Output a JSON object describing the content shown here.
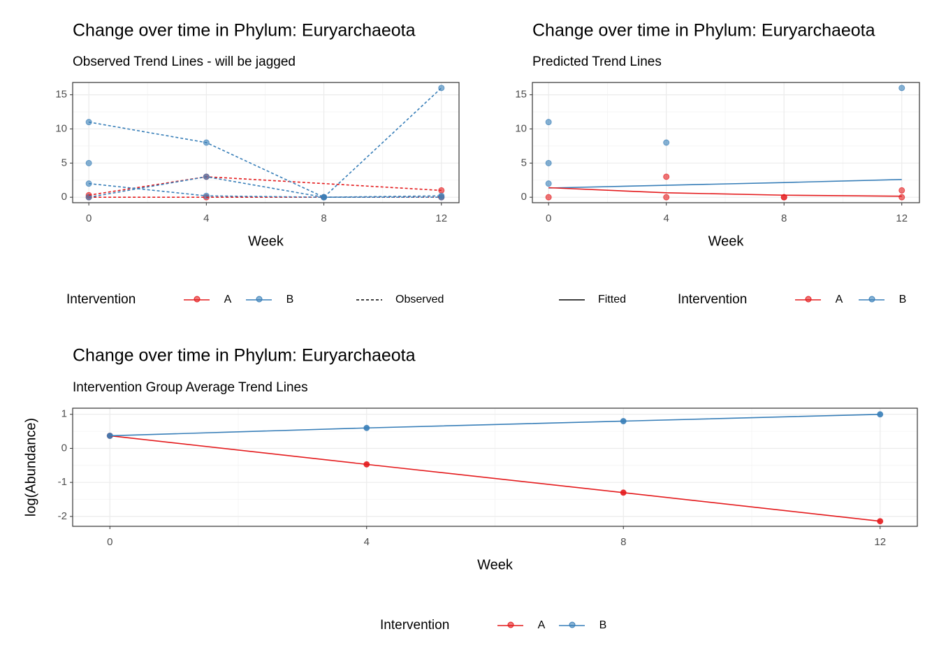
{
  "chart_data": [
    {
      "type": "line",
      "title": "Change over time in Phylum: Euryarchaeota",
      "subtitle": "Observed Trend Lines - will be jagged",
      "xlabel": "Week",
      "xlim": [
        -0.55,
        12.6
      ],
      "ylim": [
        -0.8,
        16.8
      ],
      "xticks": [
        0,
        4,
        8,
        12
      ],
      "yticks": [
        0,
        5,
        10,
        15
      ],
      "grid": true,
      "legend_title": "Intervention",
      "linetype_label": "Observed",
      "linetype": "dashed",
      "groups": [
        {
          "name": "A",
          "color": "#e41a1c"
        },
        {
          "name": "B",
          "color": "#377eb8"
        }
      ],
      "series": [
        {
          "group": 0,
          "line": "dashed",
          "x": [
            0,
            4,
            8,
            12
          ],
          "values": [
            0,
            0,
            0,
            0
          ]
        },
        {
          "group": 0,
          "line": "dashed",
          "x": [
            0,
            4,
            12
          ],
          "values": [
            0.3,
            3,
            1
          ]
        },
        {
          "group": 1,
          "line": "dashed",
          "x": [
            0,
            4,
            8,
            12
          ],
          "values": [
            11,
            8,
            0,
            16
          ]
        },
        {
          "group": 1,
          "line": "dashed",
          "x": [
            0,
            4,
            8,
            12
          ],
          "values": [
            2,
            0.2,
            0,
            0
          ]
        },
        {
          "group": 1,
          "line": "dashed",
          "x": [
            0,
            4,
            8,
            12
          ],
          "values": [
            0,
            3,
            0,
            0.2
          ]
        },
        {
          "group": 1,
          "line": "none",
          "x": [
            0
          ],
          "values": [
            5
          ]
        }
      ]
    },
    {
      "type": "line",
      "title": "Change over time in Phylum: Euryarchaeota",
      "subtitle": "Predicted Trend Lines",
      "xlabel": "Week",
      "xlim": [
        -0.55,
        12.6
      ],
      "ylim": [
        -0.8,
        16.8
      ],
      "xticks": [
        0,
        4,
        8,
        12
      ],
      "yticks": [
        0,
        5,
        10,
        15
      ],
      "grid": true,
      "legend_title": "Intervention",
      "linetype_label": "Fitted",
      "linetype": "solid",
      "groups": [
        {
          "name": "A",
          "color": "#e41a1c"
        },
        {
          "name": "B",
          "color": "#377eb8"
        }
      ],
      "series": [
        {
          "group": 1,
          "line": "none",
          "x": [
            0,
            0,
            0,
            4,
            12
          ],
          "values": [
            11,
            5,
            2,
            8,
            16
          ]
        },
        {
          "group": 0,
          "line": "none",
          "x": [
            0,
            4,
            4,
            8,
            8,
            12,
            12
          ],
          "values": [
            0,
            3,
            0,
            0,
            0,
            1,
            0
          ]
        },
        {
          "group": 1,
          "line": "solid",
          "nopoints": true,
          "x": [
            0,
            4,
            8,
            12
          ],
          "values": [
            1.35,
            1.75,
            2.15,
            2.6
          ]
        },
        {
          "group": 0,
          "line": "solid",
          "nopoints": true,
          "x": [
            0,
            4,
            8,
            12
          ],
          "values": [
            1.4,
            0.65,
            0.3,
            0.15
          ]
        }
      ]
    },
    {
      "type": "line",
      "title": "Change over time in Phylum: Euryarchaeota",
      "subtitle": "Intervention Group Average Trend Lines",
      "xlabel": "Week",
      "ylabel": "log(Abundance)",
      "xlim": [
        -0.58,
        12.58
      ],
      "ylim": [
        -2.29,
        1.18
      ],
      "xticks": [
        0,
        4,
        8,
        12
      ],
      "yticks": [
        -2,
        -1,
        0,
        1
      ],
      "grid": true,
      "legend_title": "Intervention",
      "groups": [
        {
          "name": "A",
          "color": "#e41a1c"
        },
        {
          "name": "B",
          "color": "#377eb8"
        }
      ],
      "series": [
        {
          "group": 0,
          "line": "solid",
          "x": [
            0,
            4,
            8,
            12
          ],
          "values": [
            0.37,
            -0.47,
            -1.3,
            -2.14
          ]
        },
        {
          "group": 1,
          "line": "solid",
          "x": [
            0,
            4,
            8,
            12
          ],
          "values": [
            0.37,
            0.6,
            0.8,
            1.0
          ]
        }
      ]
    }
  ]
}
